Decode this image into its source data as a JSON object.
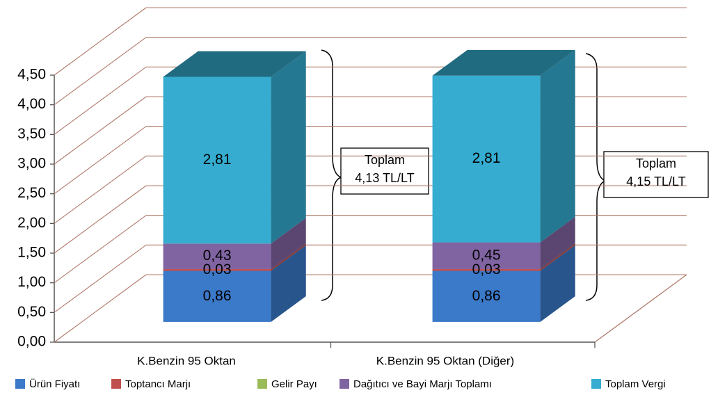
{
  "chart_data": {
    "type": "bar3d_stacked",
    "categories": [
      "K.Benzin 95 Oktan",
      "K.Benzin 95 Oktan (Diğer)"
    ],
    "series": [
      {
        "name": "Ürün Fiyatı",
        "color": "#3b79c9",
        "values": [
          0.86,
          0.86
        ],
        "value_labels": [
          "0,86",
          "0,86"
        ]
      },
      {
        "name": "Toptancı Marjı",
        "color": "#c0504d",
        "values": [
          0.03,
          0.03
        ],
        "value_labels": [
          "0,03",
          "0,03"
        ]
      },
      {
        "name": "Gelir Payı",
        "color": "#9bbb59",
        "values": [
          0,
          0
        ]
      },
      {
        "name": "Dağıtıcı ve Bayi Marjı Toplamı",
        "color": "#8064a2",
        "values": [
          0.43,
          0.45
        ],
        "value_labels": [
          "0,43",
          "0,45"
        ]
      },
      {
        "name": "Toplam Vergi",
        "color": "#35acd0",
        "values": [
          2.81,
          2.81
        ],
        "value_labels": [
          "2,81",
          "2,81"
        ]
      }
    ],
    "ylim": [
      0,
      4.5
    ],
    "yticks": [
      {
        "value": 0,
        "label": "0,00"
      },
      {
        "value": 0.5,
        "label": "0,50"
      },
      {
        "value": 1,
        "label": "1,00"
      },
      {
        "value": 1.5,
        "label": "1,50"
      },
      {
        "value": 2,
        "label": "2,00"
      },
      {
        "value": 2.5,
        "label": "2,50"
      },
      {
        "value": 3,
        "label": "3,00"
      },
      {
        "value": 3.5,
        "label": "3,50"
      },
      {
        "value": 4,
        "label": "4,00"
      },
      {
        "value": 4.5,
        "label": "4,50"
      }
    ],
    "grid": true,
    "legend": "bottom",
    "annotations": [
      {
        "lines": [
          "Toplam",
          "4,13 TL/LT"
        ]
      },
      {
        "lines": [
          "Toplam",
          "4,15 TL/LT"
        ]
      }
    ]
  }
}
